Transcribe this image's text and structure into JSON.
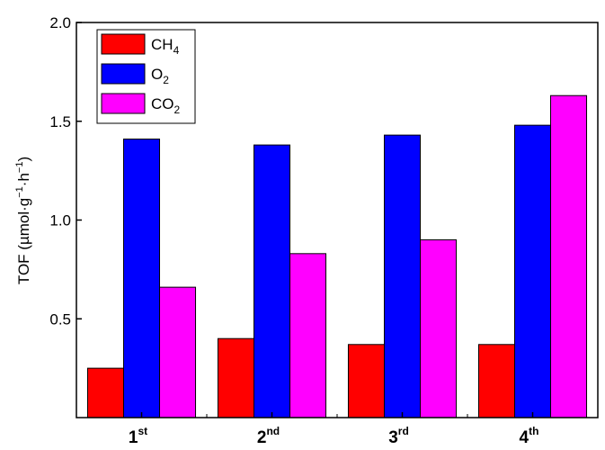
{
  "chart_data": {
    "type": "bar",
    "categories": [
      {
        "main": "1",
        "sup": "st"
      },
      {
        "main": "2",
        "sup": "nd"
      },
      {
        "main": "3",
        "sup": "rd"
      },
      {
        "main": "4",
        "sup": "th"
      }
    ],
    "series": [
      {
        "name": "CH4",
        "label_main": "CH",
        "label_sub": "4",
        "color": "#ff0000",
        "values": [
          0.25,
          0.4,
          0.37,
          0.37
        ]
      },
      {
        "name": "O2",
        "label_main": "O",
        "label_sub": "2",
        "color": "#0000ff",
        "values": [
          1.41,
          1.38,
          1.43,
          1.48
        ]
      },
      {
        "name": "CO2",
        "label_main": "CO",
        "label_sub": "2",
        "color": "#ff00ff",
        "values": [
          0.66,
          0.83,
          0.9,
          1.63
        ]
      }
    ],
    "ylabel": {
      "prefix": "TOF (µmol·g",
      "sup1": "−1",
      "mid": "·h",
      "sup2": "−1",
      "suffix": ")"
    },
    "ylim": [
      0,
      2.0
    ],
    "yticks": [
      {
        "value": 0.5,
        "label": "0.5"
      },
      {
        "value": 1.0,
        "label": "1.0"
      },
      {
        "value": 1.5,
        "label": "1.5"
      },
      {
        "value": 2.0,
        "label": "2.0"
      }
    ],
    "legend_position": "top-left",
    "grid": false
  }
}
